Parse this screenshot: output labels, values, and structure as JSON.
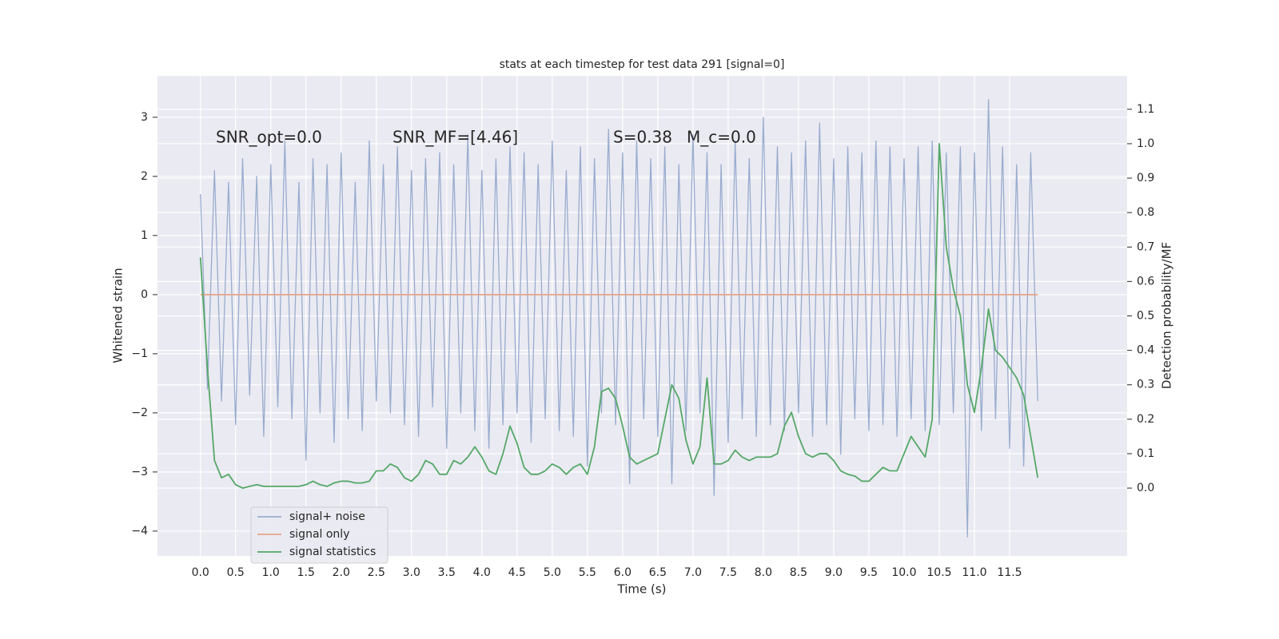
{
  "chart_data": {
    "type": "line",
    "title": "stats at each timestep for test data 291 [signal=0]",
    "xlabel": "Time (s)",
    "ylabel": "Whitened strain",
    "y2label": "Detection probability/MF",
    "annotations": [
      "SNR_opt=0.0",
      "SNR_MF=[4.46]",
      "S=0.38",
      "M_c=0.0"
    ],
    "x": [
      0.0,
      0.1,
      0.2,
      0.3,
      0.4,
      0.5,
      0.6,
      0.7,
      0.8,
      0.9,
      1.0,
      1.1,
      1.2,
      1.3,
      1.4,
      1.5,
      1.6,
      1.7,
      1.8,
      1.9,
      2.0,
      2.1,
      2.2,
      2.3,
      2.4,
      2.5,
      2.6,
      2.7,
      2.8,
      2.9,
      3.0,
      3.1,
      3.2,
      3.3,
      3.4,
      3.5,
      3.6,
      3.7,
      3.8,
      3.9,
      4.0,
      4.1,
      4.2,
      4.3,
      4.4,
      4.5,
      4.6,
      4.7,
      4.8,
      4.9,
      5.0,
      5.1,
      5.2,
      5.3,
      5.4,
      5.5,
      5.6,
      5.7,
      5.8,
      5.9,
      6.0,
      6.1,
      6.2,
      6.3,
      6.4,
      6.5,
      6.6,
      6.7,
      6.8,
      6.9,
      7.0,
      7.1,
      7.2,
      7.3,
      7.4,
      7.5,
      7.6,
      7.7,
      7.8,
      7.9,
      8.0,
      8.1,
      8.2,
      8.3,
      8.4,
      8.5,
      8.6,
      8.7,
      8.8,
      8.9,
      9.0,
      9.1,
      9.2,
      9.3,
      9.4,
      9.5,
      9.6,
      9.7,
      9.8,
      9.9,
      10.0,
      10.1,
      10.2,
      10.3,
      10.4,
      10.5,
      10.6,
      10.7,
      10.8,
      10.9,
      11.0,
      11.1,
      11.2,
      11.3,
      11.4,
      11.5,
      11.6,
      11.7,
      11.8,
      11.9
    ],
    "series": [
      {
        "name": "signal+ noise",
        "color": "#9aaccf",
        "values": [
          1.7,
          -1.6,
          2.1,
          -1.8,
          1.9,
          -2.2,
          2.3,
          -1.7,
          2.0,
          -2.4,
          2.2,
          -1.9,
          2.6,
          -2.1,
          1.9,
          -2.8,
          2.3,
          -2.0,
          2.2,
          -2.5,
          2.4,
          -2.1,
          1.9,
          -2.3,
          2.6,
          -1.8,
          2.2,
          -2.0,
          2.5,
          -2.2,
          2.1,
          -2.4,
          2.3,
          -1.9,
          2.4,
          -2.6,
          2.2,
          -2.0,
          2.7,
          -2.3,
          2.1,
          -2.6,
          2.3,
          -2.2,
          2.5,
          -2.0,
          2.4,
          -2.5,
          2.2,
          -2.1,
          2.6,
          -2.3,
          2.1,
          -2.4,
          2.5,
          -2.9,
          2.3,
          -2.0,
          2.8,
          -2.2,
          2.4,
          -3.2,
          2.6,
          -2.1,
          2.3,
          -2.4,
          2.5,
          -3.2,
          2.2,
          -2.3,
          2.7,
          -2.0,
          2.4,
          -3.4,
          2.2,
          -2.5,
          2.6,
          -2.1,
          2.3,
          -2.4,
          3.0,
          -2.2,
          2.5,
          -2.3,
          2.4,
          -2.0,
          2.6,
          -2.4,
          2.9,
          -2.2,
          2.3,
          -2.7,
          2.5,
          -2.1,
          2.4,
          -2.3,
          2.6,
          -2.2,
          2.5,
          -2.4,
          2.3,
          -2.1,
          2.5,
          -2.3,
          2.6,
          -2.2,
          2.4,
          -2.0,
          2.5,
          -4.1,
          2.4,
          -2.3,
          3.3,
          -2.1,
          2.5,
          -2.6,
          2.2,
          -2.9,
          2.4,
          -1.8
        ]
      },
      {
        "name": "signal only",
        "color": "#e6a58a",
        "values": [
          0,
          0,
          0,
          0,
          0,
          0,
          0,
          0,
          0,
          0,
          0,
          0,
          0,
          0,
          0,
          0,
          0,
          0,
          0,
          0,
          0,
          0,
          0,
          0,
          0,
          0,
          0,
          0,
          0,
          0,
          0,
          0,
          0,
          0,
          0,
          0,
          0,
          0,
          0,
          0,
          0,
          0,
          0,
          0,
          0,
          0,
          0,
          0,
          0,
          0,
          0,
          0,
          0,
          0,
          0,
          0,
          0,
          0,
          0,
          0,
          0,
          0,
          0,
          0,
          0,
          0,
          0,
          0,
          0,
          0,
          0,
          0,
          0,
          0,
          0,
          0,
          0,
          0,
          0,
          0,
          0,
          0,
          0,
          0,
          0,
          0,
          0,
          0,
          0,
          0,
          0,
          0,
          0,
          0,
          0,
          0,
          0,
          0,
          0,
          0,
          0,
          0,
          0,
          0,
          0,
          0,
          0,
          0,
          0,
          0,
          0,
          0,
          0,
          0,
          0,
          0,
          0,
          0,
          0,
          0
        ]
      },
      {
        "name": "signal statistics",
        "color": "#55a868",
        "axis": "y2",
        "values": [
          0.67,
          0.35,
          0.08,
          0.03,
          0.04,
          0.01,
          0.0,
          0.005,
          0.01,
          0.005,
          0.005,
          0.005,
          0.005,
          0.005,
          0.005,
          0.01,
          0.02,
          0.01,
          0.005,
          0.015,
          0.02,
          0.02,
          0.015,
          0.015,
          0.02,
          0.05,
          0.05,
          0.07,
          0.06,
          0.03,
          0.02,
          0.04,
          0.08,
          0.07,
          0.04,
          0.04,
          0.08,
          0.07,
          0.09,
          0.12,
          0.09,
          0.05,
          0.04,
          0.1,
          0.18,
          0.13,
          0.06,
          0.04,
          0.04,
          0.05,
          0.07,
          0.06,
          0.04,
          0.06,
          0.07,
          0.04,
          0.12,
          0.28,
          0.29,
          0.26,
          0.18,
          0.09,
          0.07,
          0.08,
          0.09,
          0.1,
          0.2,
          0.3,
          0.26,
          0.14,
          0.07,
          0.12,
          0.32,
          0.07,
          0.07,
          0.08,
          0.11,
          0.09,
          0.08,
          0.09,
          0.09,
          0.09,
          0.1,
          0.18,
          0.22,
          0.15,
          0.1,
          0.09,
          0.1,
          0.1,
          0.08,
          0.05,
          0.04,
          0.035,
          0.02,
          0.02,
          0.04,
          0.06,
          0.05,
          0.05,
          0.1,
          0.15,
          0.12,
          0.09,
          0.2,
          1.0,
          0.7,
          0.58,
          0.5,
          0.3,
          0.22,
          0.35,
          0.52,
          0.4,
          0.38,
          0.35,
          0.32,
          0.27,
          0.15,
          0.03
        ]
      }
    ],
    "xlim": [
      -0.61,
      13.17
    ],
    "ylim": [
      -4.42,
      3.7
    ],
    "y2lim": [
      -0.197,
      1.197
    ],
    "xticks": [
      {
        "value": 0,
        "label": "0.0"
      },
      0.5,
      {
        "value": 1,
        "label": "1.0"
      },
      1.5,
      {
        "value": 2,
        "label": "2.0"
      },
      2.5,
      {
        "value": 3,
        "label": "3.0"
      },
      3.5,
      {
        "value": 4,
        "label": "4.0"
      },
      4.5,
      {
        "value": 5,
        "label": "5.0"
      },
      5.5,
      {
        "value": 6,
        "label": "6.0"
      },
      6.5,
      {
        "value": 7,
        "label": "7.0"
      },
      7.5,
      {
        "value": 8,
        "label": "8.0"
      },
      8.5,
      {
        "value": 9,
        "label": "9.0"
      },
      9.5,
      {
        "value": 10,
        "label": "10.0"
      },
      10.5,
      {
        "value": 11,
        "label": "11.0"
      },
      11.5
    ],
    "yticks": [
      {
        "value": -4,
        "label": "−4"
      },
      {
        "value": -3,
        "label": "−3"
      },
      {
        "value": -2,
        "label": "−2"
      },
      {
        "value": -1,
        "label": "−1"
      },
      0,
      1,
      2,
      3
    ],
    "y2ticks": [
      {
        "value": 0,
        "label": "0.0"
      },
      0.1,
      0.2,
      0.3,
      0.4,
      0.5,
      0.6,
      0.7,
      0.8,
      0.9,
      {
        "value": 1,
        "label": "1.0"
      },
      1.1
    ],
    "grid": true,
    "legend": "lower left"
  }
}
